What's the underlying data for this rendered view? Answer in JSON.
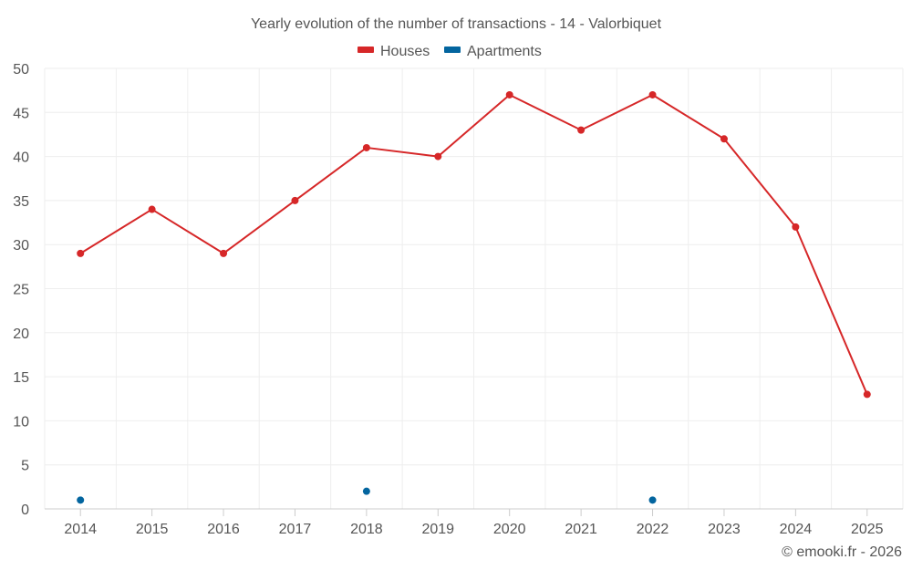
{
  "chart_data": {
    "type": "line",
    "title": "Yearly evolution of the number of transactions - 14 - Valorbiquet",
    "categories": [
      "2014",
      "2015",
      "2016",
      "2017",
      "2018",
      "2019",
      "2020",
      "2021",
      "2022",
      "2023",
      "2024",
      "2025"
    ],
    "ylim": [
      0,
      50
    ],
    "yticks": [
      0,
      5,
      10,
      15,
      20,
      25,
      30,
      35,
      40,
      45,
      50
    ],
    "grid": true,
    "legend_position": "top-center",
    "series": [
      {
        "name": "Houses",
        "color": "#d62728",
        "values": [
          29,
          34,
          29,
          35,
          41,
          40,
          47,
          43,
          47,
          42,
          32,
          13
        ]
      },
      {
        "name": "Apartments",
        "color": "#03659f",
        "values": [
          1,
          null,
          null,
          null,
          2,
          null,
          null,
          null,
          1,
          null,
          null,
          null
        ]
      }
    ],
    "xlabel": "",
    "ylabel": ""
  },
  "credit": "© emooki.fr - 2026"
}
